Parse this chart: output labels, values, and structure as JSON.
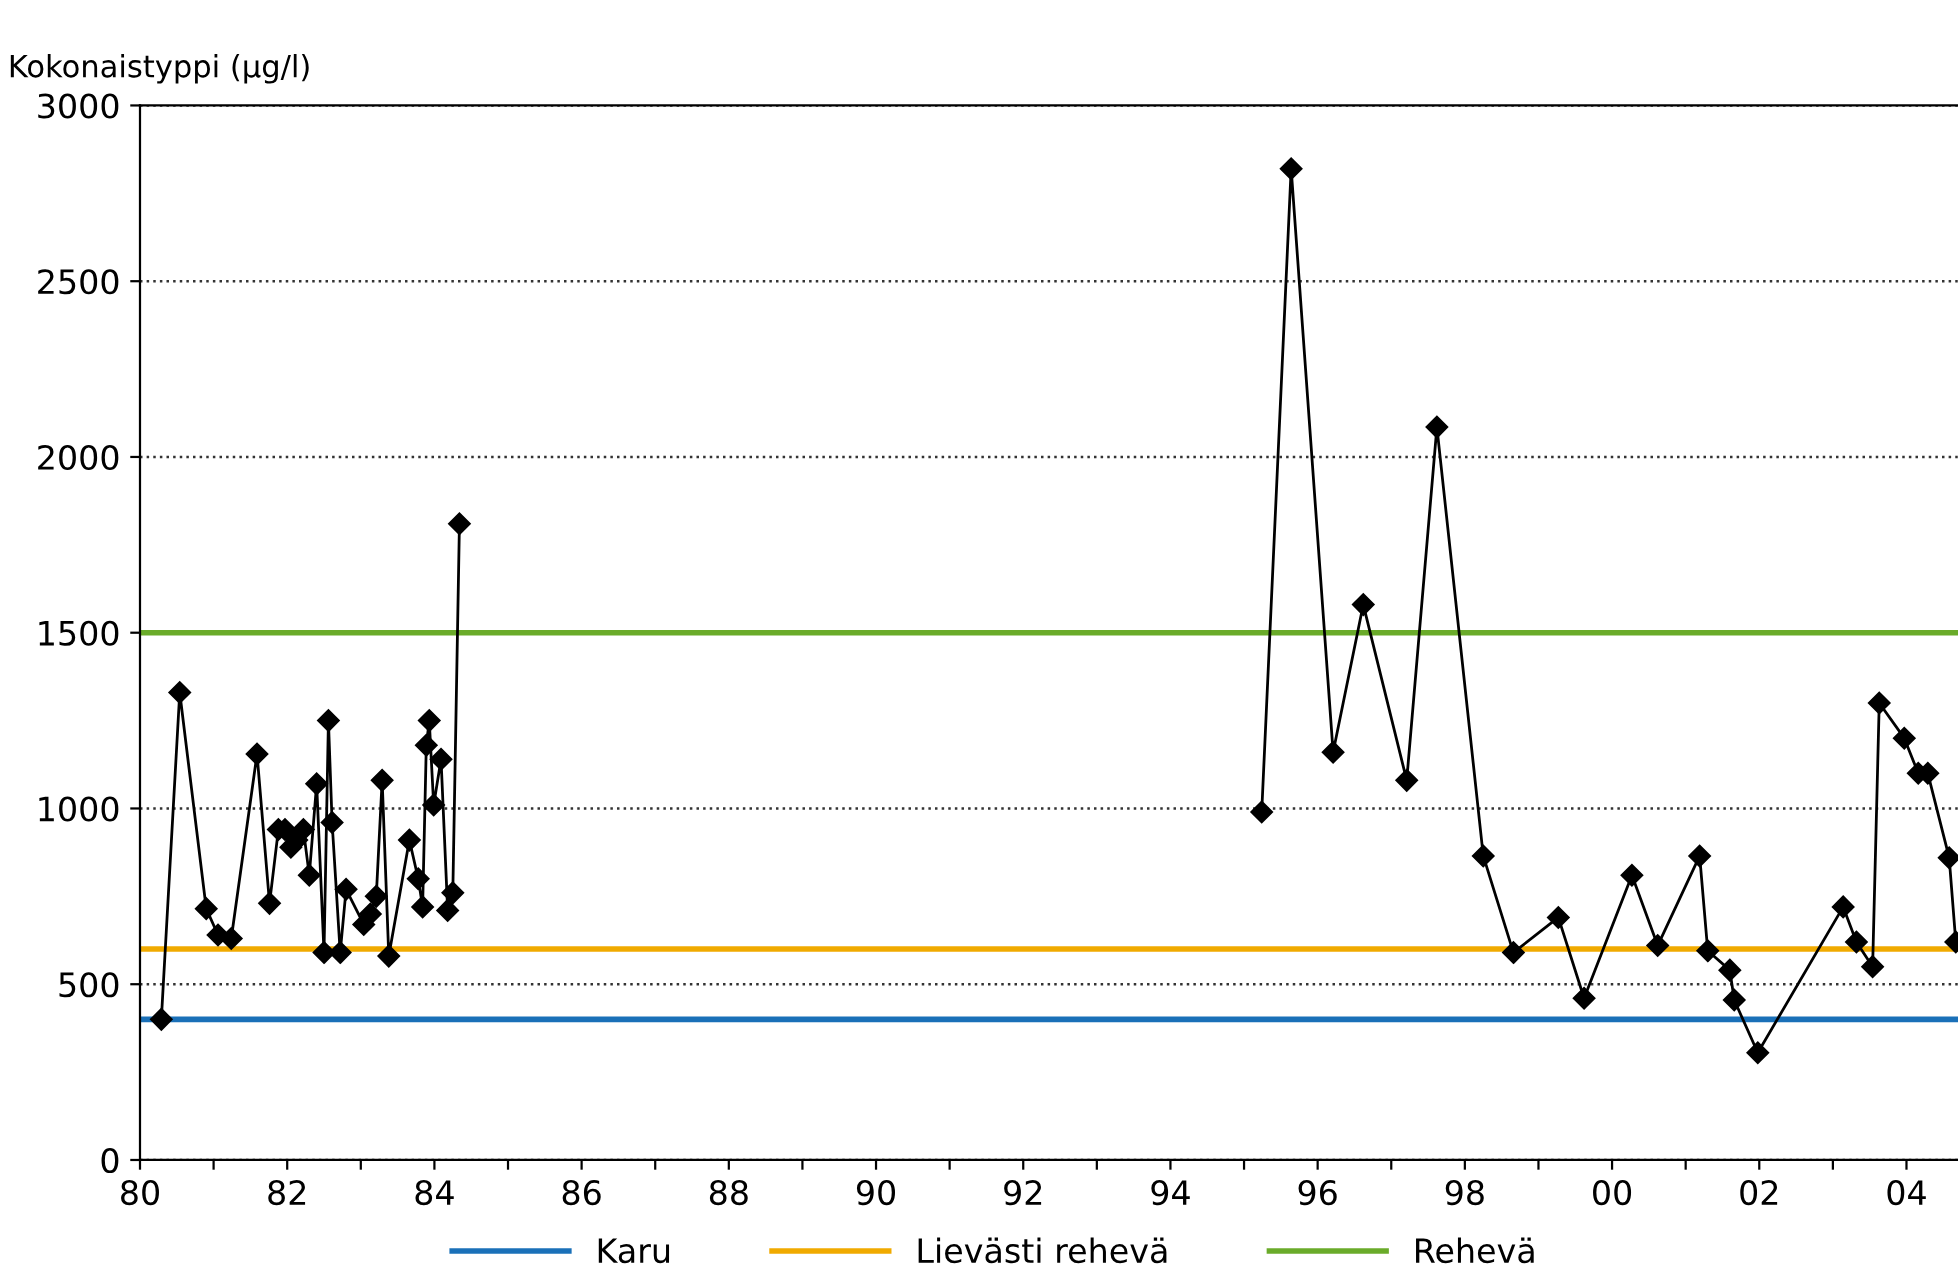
{
  "chart_data": {
    "type": "line",
    "ylabel": "Kokonaistyppi (µg/l)",
    "xlim": [
      1980,
      2004.7
    ],
    "xticks": [
      {
        "value": 1980,
        "label": "80"
      },
      {
        "value": 1981,
        "label": null
      },
      {
        "value": 1982,
        "label": "82"
      },
      {
        "value": 1983,
        "label": null
      },
      {
        "value": 1984,
        "label": "84"
      },
      {
        "value": 1985,
        "label": null
      },
      {
        "value": 1986,
        "label": "86"
      },
      {
        "value": 1987,
        "label": null
      },
      {
        "value": 1988,
        "label": "88"
      },
      {
        "value": 1989,
        "label": null
      },
      {
        "value": 1990,
        "label": "90"
      },
      {
        "value": 1991,
        "label": null
      },
      {
        "value": 1992,
        "label": "92"
      },
      {
        "value": 1993,
        "label": null
      },
      {
        "value": 1994,
        "label": "94"
      },
      {
        "value": 1995,
        "label": null
      },
      {
        "value": 1996,
        "label": "96"
      },
      {
        "value": 1997,
        "label": null
      },
      {
        "value": 1998,
        "label": "98"
      },
      {
        "value": 1999,
        "label": null
      },
      {
        "value": 2000,
        "label": "00"
      },
      {
        "value": 2001,
        "label": null
      },
      {
        "value": 2002,
        "label": "02"
      },
      {
        "value": 2003,
        "label": null
      },
      {
        "value": 2004,
        "label": "04"
      }
    ],
    "ylim": [
      0,
      3000
    ],
    "yticks": [
      0,
      500,
      1000,
      1500,
      2000,
      2500,
      3000
    ],
    "grid": "y",
    "legend": "bottom",
    "marker": "diamond",
    "line_style": "solid",
    "series": [
      {
        "color": "#000000",
        "x": [
          1980.29,
          1980.54,
          1980.9,
          1981.06,
          1981.24,
          1981.59,
          1981.76,
          1981.88,
          1981.97,
          1982.05,
          1982.13,
          1982.22,
          1982.3,
          1982.4,
          1982.5,
          1982.56,
          1982.61,
          1982.72,
          1982.8,
          1983.04,
          1983.13,
          1983.21,
          1983.29,
          1983.38,
          1983.66,
          1983.78,
          1983.84,
          1983.89,
          1983.93,
          1983.99,
          1984.09,
          1984.18,
          1984.25,
          1984.34,
          1990,
          1995.24,
          1995.64,
          1996.21,
          1996.62,
          1997.21,
          1997.62,
          1998.25,
          1998.66,
          1999.27,
          1999.62,
          2000.27,
          2000.62,
          2001.19,
          2001.3,
          2001.6,
          2001.66,
          2001.98,
          2003.14,
          2003.32,
          2003.54,
          2003.63,
          2003.97,
          2004.16,
          2004.29,
          2004.58,
          2004.67
        ],
        "values": [
          400,
          1330,
          715,
          640,
          630,
          1155,
          730,
          940,
          940,
          890,
          910,
          940,
          810,
          1070,
          590,
          1250,
          960,
          590,
          770,
          670,
          700,
          750,
          1080,
          580,
          910,
          800,
          720,
          1180,
          1250,
          1010,
          1140,
          710,
          760,
          1810,
          null,
          990,
          2820,
          1160,
          1580,
          1080,
          2085,
          865,
          590,
          690,
          460,
          810,
          610,
          865,
          595,
          540,
          455,
          305,
          720,
          620,
          550,
          1300,
          1200,
          1100,
          1100,
          860,
          620
        ]
      }
    ],
    "ref_lines": [
      {
        "axis": "y",
        "value": 400,
        "label": "Karu",
        "color": "#1a70b8"
      },
      {
        "axis": "y",
        "value": 600,
        "label": "Lievästi rehevä",
        "color": "#f0aa00"
      },
      {
        "axis": "y",
        "value": 1500,
        "label": "Rehevä",
        "color": "#6aab2a"
      }
    ]
  }
}
